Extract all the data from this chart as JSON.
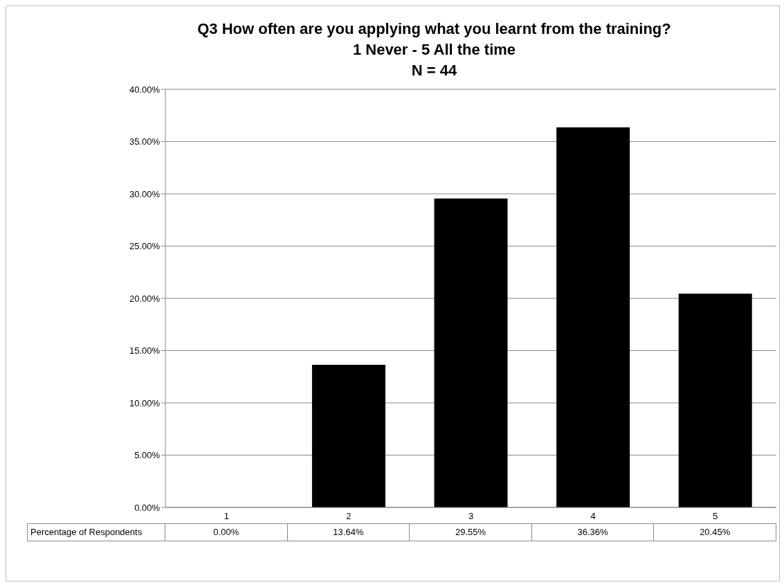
{
  "chart_data": {
    "type": "bar",
    "title": "Q3 How often are you applying what you learnt from the training?",
    "subtitle": "1 Never - 5 All the time\nN = 44",
    "categories": [
      "1",
      "2",
      "3",
      "4",
      "5"
    ],
    "series": [
      {
        "name": "Percentage of Respondents",
        "color": "#000000",
        "values": [
          0,
          13.64,
          29.55,
          36.36,
          20.45
        ],
        "value_labels": [
          "0.00%",
          "13.64%",
          "29.55%",
          "36.36%",
          "20.45%"
        ]
      }
    ],
    "ylim": [
      0,
      40
    ],
    "yticks": [
      {
        "value": 0,
        "label": "0.00%"
      },
      {
        "value": 5,
        "label": "5.00%"
      },
      {
        "value": 10,
        "label": "10.00%"
      },
      {
        "value": 15,
        "label": "15.00%"
      },
      {
        "value": 20,
        "label": "20.00%"
      },
      {
        "value": 25,
        "label": "25.00%"
      },
      {
        "value": 30,
        "label": "30.00%"
      },
      {
        "value": 35,
        "label": "35.00%"
      },
      {
        "value": 40,
        "label": "40.00%"
      }
    ],
    "grid": "y",
    "legend": false
  }
}
